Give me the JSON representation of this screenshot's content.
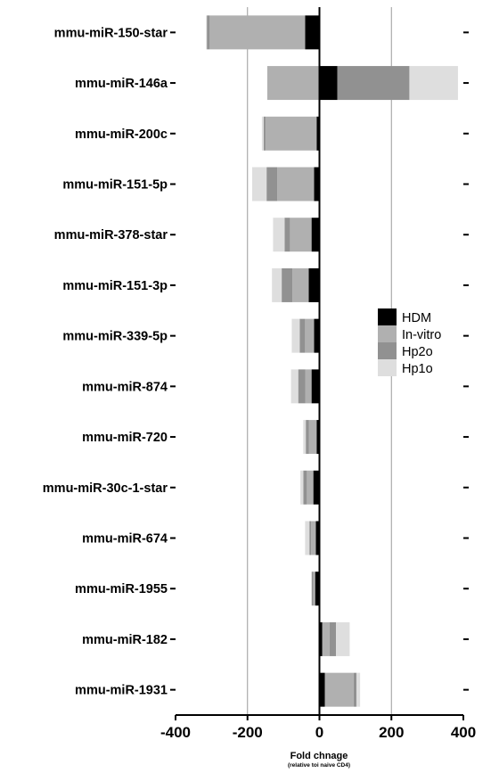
{
  "chart_data": {
    "type": "bar",
    "orientation": "horizontal",
    "stacked": true,
    "categories": [
      "mmu-miR-150-star",
      "mmu-miR-146a",
      "mmu-miR-200c",
      "mmu-miR-151-5p",
      "mmu-miR-378-star",
      "mmu-miR-151-3p",
      "mmu-miR-339-5p",
      "mmu-miR-874",
      "mmu-miR-720",
      "mmu-miR-30c-1-star",
      "mmu-miR-674",
      "mmu-miR-1955",
      "mmu-miR-182",
      "mmu-miR-1931"
    ],
    "series": [
      {
        "name": "HDM",
        "color": "#000000",
        "values": [
          -40,
          50,
          -8,
          -15,
          -22,
          -30,
          -15,
          -22,
          -8,
          -17,
          -10,
          -12,
          8,
          15
        ]
      },
      {
        "name": "In-vitro",
        "color": "#b0b0b0",
        "values": [
          -265,
          -145,
          -142,
          -102,
          -60,
          -45,
          -25,
          -17,
          -21,
          -18,
          -13,
          -5,
          20,
          80
        ]
      },
      {
        "name": "Hp2o",
        "color": "#919191",
        "values": [
          -8,
          200,
          -5,
          -30,
          -15,
          -30,
          -15,
          -20,
          -9,
          -10,
          -5,
          -4,
          18,
          8
        ]
      },
      {
        "name": "Hp1o",
        "color": "#dedede",
        "values": [
          -2,
          135,
          -5,
          -40,
          -32,
          -27,
          -22,
          -20,
          -7,
          -8,
          -12,
          -2,
          38,
          10
        ]
      }
    ],
    "xlabel": "Fold chnage",
    "xsublabel": "(relative toi naive CD4)",
    "xlim": [
      -400,
      400
    ],
    "xticks": [
      -400,
      -200,
      0,
      200,
      400
    ],
    "vertical_gridlines": [
      -200,
      200
    ],
    "legend_position": "right"
  }
}
